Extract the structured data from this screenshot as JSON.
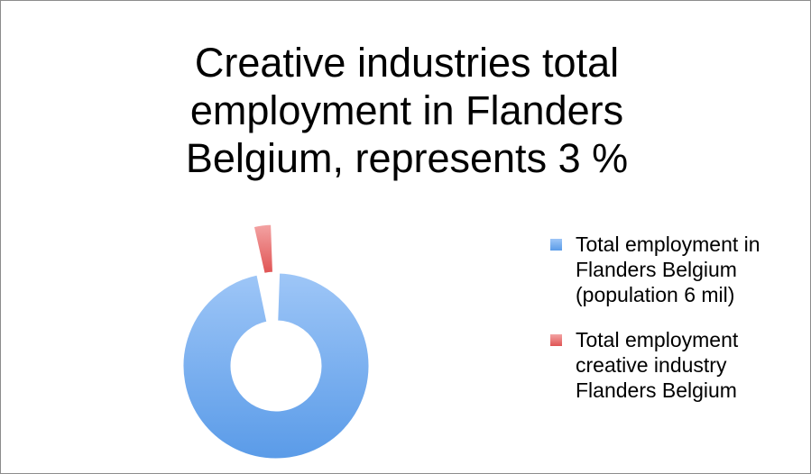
{
  "colors": {
    "series_0": "#5a9be8",
    "series_0_light": "#9ec6f7",
    "series_1": "#e05454",
    "series_1_light": "#f3a3a3"
  },
  "chart_data": {
    "type": "pie",
    "title": "Creative industries total employment in Flanders Belgium, represents 3 %",
    "title_lines": [
      "Creative industries total",
      "employment in Flanders",
      "Belgium, represents 3 %"
    ],
    "categories": [
      "Total employment in Flanders Belgium (population 6 mil)",
      "Total employment creative industry Flanders Belgium"
    ],
    "values": [
      97,
      3
    ],
    "donut": true,
    "exploded": true,
    "legend_placement": "right",
    "legend_lines": [
      [
        "Total employment in",
        "Flanders Belgium",
        "(population 6 mil)"
      ],
      [
        "Total employment",
        "creative industry",
        "Flanders Belgium"
      ]
    ]
  }
}
